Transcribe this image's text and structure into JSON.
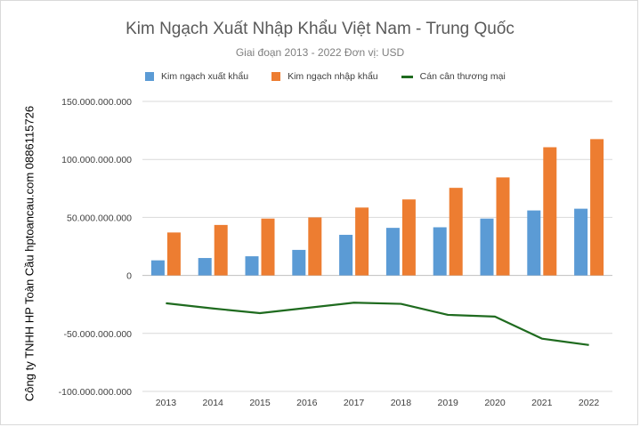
{
  "chart_data": {
    "type": "bar",
    "title": "Kim Ngạch Xuất Nhập Khẩu Việt Nam - Trung Quốc",
    "subtitle": "Giai đoạn 2013 - 2022 Đơn vị: USD",
    "side_text": "Công ty TNHH HP Toàn Cầu hptoancau.com 0886115726",
    "categories": [
      "2013",
      "2014",
      "2015",
      "2016",
      "2017",
      "2018",
      "2019",
      "2020",
      "2021",
      "2022"
    ],
    "series": [
      {
        "name": "Kim ngạch xuất khẩu",
        "kind": "bar",
        "color": "#5b9bd5",
        "values": [
          13000000000,
          15000000000,
          16500000000,
          22000000000,
          35000000000,
          41000000000,
          41500000000,
          49000000000,
          56000000000,
          57500000000
        ]
      },
      {
        "name": "Kim ngạch nhập khẩu",
        "kind": "bar",
        "color": "#ed7d31",
        "values": [
          37000000000,
          43500000000,
          49000000000,
          50000000000,
          58500000000,
          65500000000,
          75500000000,
          84500000000,
          110500000000,
          117500000000
        ]
      },
      {
        "name": "Cán cân thương mại",
        "kind": "line",
        "color": "#1f6b1f",
        "values": [
          -24000000000,
          -28500000000,
          -32500000000,
          -28000000000,
          -23500000000,
          -24500000000,
          -34000000000,
          -35500000000,
          -54500000000,
          -60000000000
        ]
      }
    ],
    "ylim": [
      -100000000000,
      150000000000
    ],
    "yticks": [
      150000000000,
      100000000000,
      50000000000,
      0,
      -50000000000,
      -100000000000
    ],
    "ytick_labels": [
      "150.000.000.000",
      "100.000.000.000",
      "50.000.000.000",
      "0",
      "-50.000.000.000",
      "-100.000.000.000"
    ],
    "grid": "horizontal",
    "legend_position": "top"
  }
}
